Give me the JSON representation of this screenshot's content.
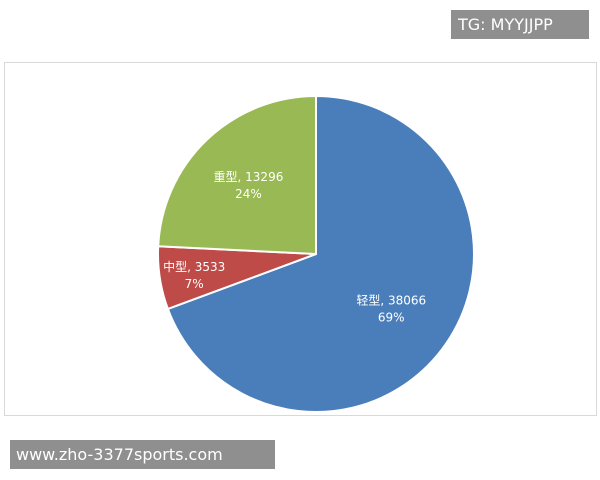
{
  "watermark_top": "TG: MYYJJPP",
  "watermark_bottom": "www.zho-3377sports.com",
  "chart_data": {
    "type": "pie",
    "title": "",
    "start_angle_deg": 0,
    "direction": "clockwise",
    "slices": [
      {
        "label": "轻型",
        "value": 38066,
        "value_text": "38066",
        "percent": "69%",
        "color": "#4a7ebb"
      },
      {
        "label": "中型",
        "value": 3533,
        "value_text": "3533",
        "percent": "7%",
        "color": "#be4b48"
      },
      {
        "label": "重型",
        "value": 13296,
        "value_text": "13296",
        "percent": "24%",
        "color": "#98b954"
      }
    ],
    "legend": "none",
    "label_position": "inside"
  }
}
